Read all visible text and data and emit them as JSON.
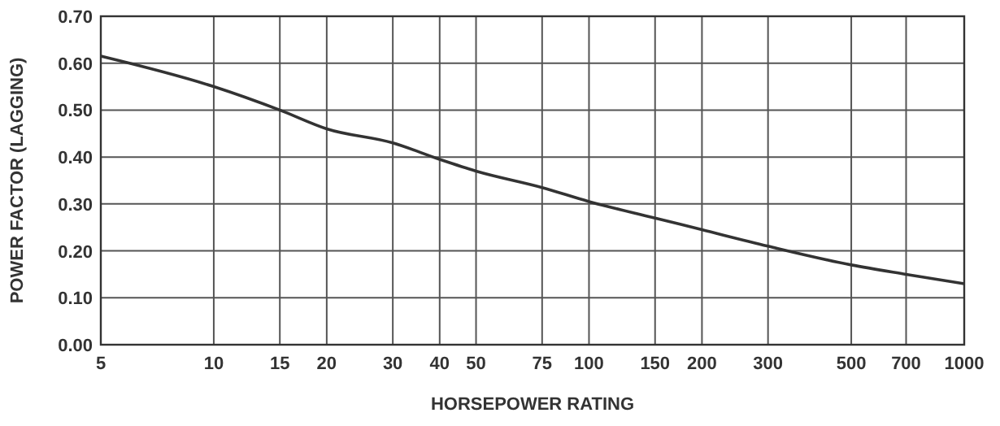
{
  "chart_data": {
    "type": "line",
    "xlabel": "HORSEPOWER RATING",
    "ylabel": "POWER FACTOR (LAGGING)",
    "x": [
      5,
      10,
      15,
      20,
      30,
      40,
      50,
      75,
      100,
      150,
      200,
      300,
      500,
      700,
      1000
    ],
    "series": [
      {
        "color": "#333333",
        "values": [
          0.615,
          0.55,
          0.5,
          0.46,
          0.43,
          0.395,
          0.37,
          0.335,
          0.305,
          0.27,
          0.245,
          0.21,
          0.17,
          0.15,
          0.13
        ]
      }
    ],
    "log": "x",
    "xlim": [
      5,
      1000
    ],
    "xticks": [
      5,
      10,
      15,
      20,
      30,
      40,
      50,
      75,
      100,
      150,
      200,
      300,
      500,
      700,
      1000
    ],
    "ylim": [
      0,
      0.7
    ],
    "yticks": [
      {
        "value": 0,
        "label": "0.00"
      },
      {
        "value": 0.1,
        "label": "0.10"
      },
      {
        "value": 0.2,
        "label": "0.20"
      },
      {
        "value": 0.3,
        "label": "0.30"
      },
      {
        "value": 0.4,
        "label": "0.40"
      },
      {
        "value": 0.5,
        "label": "0.50"
      },
      {
        "value": 0.6,
        "label": "0.60"
      },
      {
        "value": 0.7,
        "label": "0.70"
      }
    ],
    "grid": true,
    "marker": "none",
    "line_style": "solid"
  }
}
